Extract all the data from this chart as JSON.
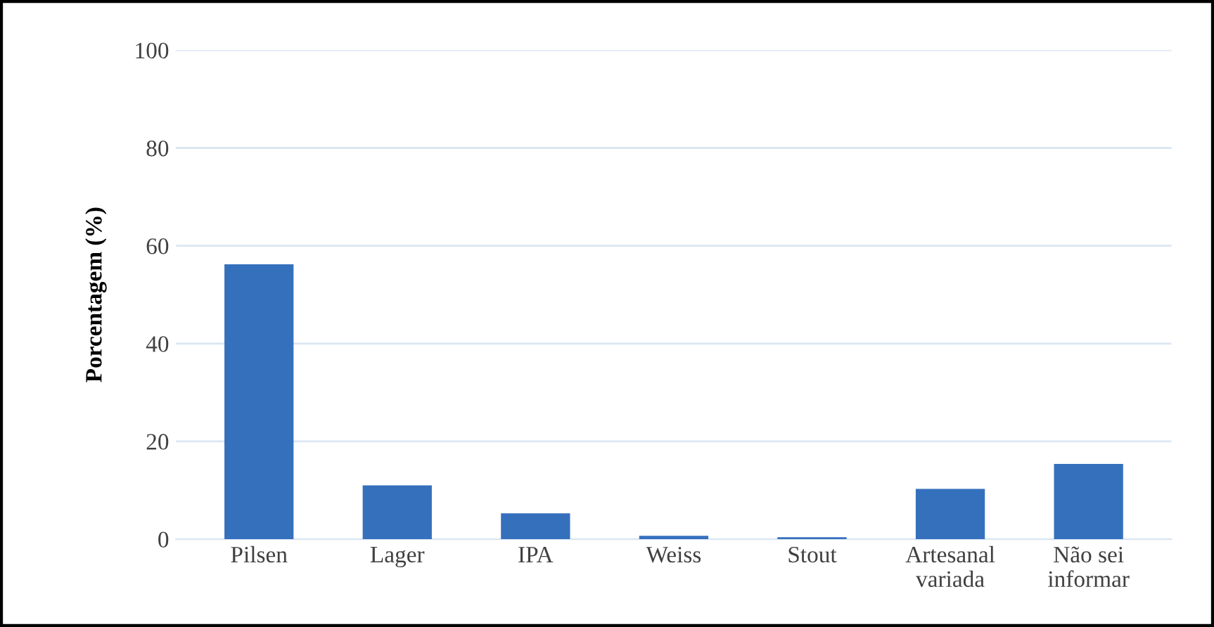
{
  "chart_data": {
    "type": "bar",
    "ylabel": "Porcentagem (%)",
    "categories": [
      "Pilsen",
      "Lager",
      "IPA",
      "Weiss",
      "Stout",
      "Artesanal\nvariada",
      "Não sei\ninformar"
    ],
    "values": [
      56.2,
      11.0,
      5.3,
      0.7,
      0.4,
      10.3,
      15.4
    ],
    "color": "#3570bd",
    "ylim": [
      0,
      100
    ],
    "yticks": [
      0,
      20,
      40,
      60,
      80,
      100
    ],
    "grid": "y"
  }
}
